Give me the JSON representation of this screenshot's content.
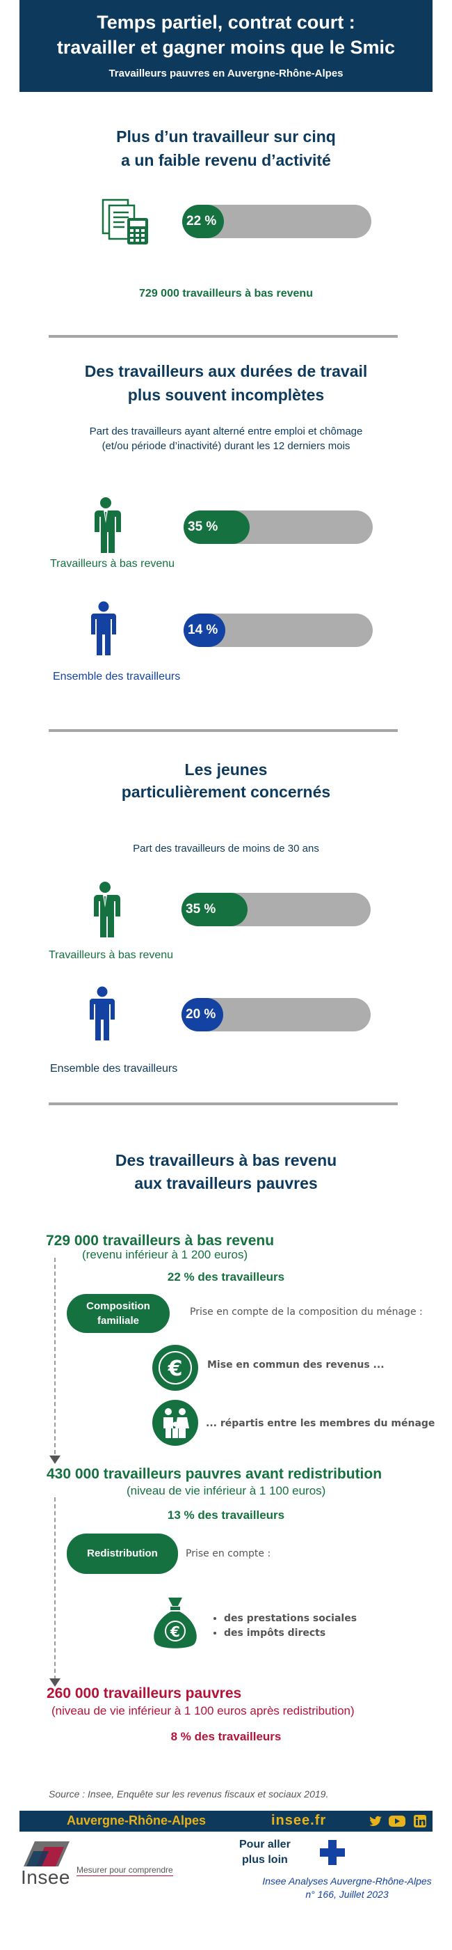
{
  "header": {
    "title_line1": "Temps partiel, contrat court :",
    "title_line2": "travailler et gagner moins que le Smic",
    "subtitle": "Travailleurs pauvres en Auvergne-Rhône-Alpes"
  },
  "section1": {
    "title_line1": "Plus d’un travailleur sur cinq",
    "title_line2": "a un faible revenu d’activité",
    "bar": {
      "label": "22 %",
      "value": 22,
      "color": "#15713f"
    },
    "caption": "729 000 travailleurs à bas revenu"
  },
  "section2": {
    "title_line1": "Des travailleurs aux durées de travail",
    "title_line2": "plus souvent incomplètes",
    "subtitle_line1": "Part des travailleurs ayant alterné entre emploi et chômage",
    "subtitle_line2": "(et/ou période d’inactivité) durant les 12 derniers mois",
    "rows": [
      {
        "label": "Travailleurs à bas revenu",
        "bar_label": "35 %",
        "value": 35,
        "color": "#15713f"
      },
      {
        "label": "Ensemble des travailleurs",
        "bar_label": "14 %",
        "value": 14,
        "color": "#1342a3"
      }
    ]
  },
  "section3": {
    "title_line1": "Les jeunes",
    "title_line2": "particulièrement concernés",
    "subtitle": "Part des travailleurs de moins de 30 ans",
    "rows": [
      {
        "label": "Travailleurs à bas revenu",
        "bar_label": "35 %",
        "value": 35,
        "color": "#15713f"
      },
      {
        "label": "Ensemble des travailleurs",
        "bar_label": "20 %",
        "value": 20,
        "color": "#1342a3"
      }
    ]
  },
  "section4": {
    "title_line1": "Des travailleurs à bas revenu",
    "title_line2": "aux travailleurs pauvres",
    "step1": {
      "headline": "729 000 travailleurs à bas revenu",
      "detail": "(revenu inférieur à 1 200 euros)",
      "share": "22 % des travailleurs"
    },
    "family": {
      "pill_line1": "Composition",
      "pill_line2": "familiale",
      "note": "Prise en compte de la composition du ménage :",
      "item1": "Mise en commun des revenus ...",
      "item2": "... répartis entre les membres du ménage"
    },
    "step2": {
      "headline": "430 000 travailleurs pauvres avant redistribution",
      "detail": "(niveau de vie inférieur à 1 100 euros)",
      "share": "13 % des travailleurs"
    },
    "redistribution": {
      "pill": "Redistribution",
      "note": "Prise en compte :",
      "items": [
        "des prestations sociales",
        "des impôts directs"
      ]
    },
    "step3": {
      "headline": "260 000 travailleurs pauvres",
      "detail": "(niveau de vie inférieur à 1 100 euros après redistribution)",
      "share": "8 % des travailleurs"
    }
  },
  "source": "Source : Insee, Enquête sur les revenus fiscaux et sociaux 2019.",
  "footer": {
    "region": "Auvergne-Rhône-Alpes",
    "site": "insee.fr",
    "logo_text": "Insee",
    "tagline": "Mesurer pour comprendre",
    "more_line1": "Pour aller",
    "more_line2": "plus loin",
    "pub_line1": "Insee Analyses Auvergne-Rhône-Alpes",
    "pub_line2": "n° 166, Juillet 2023"
  },
  "colors": {
    "navy": "#0d3a5c",
    "green": "#15713f",
    "blue": "#1342a3",
    "red": "#b5123a",
    "bar_bg": "#adadad",
    "gold": "#e8b21a"
  },
  "icons": [
    "documents-calculator-icon",
    "worker-suit-icon",
    "person-icon",
    "euro-coin-icon",
    "family-icon",
    "money-bag-icon",
    "plus-icon",
    "twitter-icon",
    "youtube-icon",
    "linkedin-icon"
  ]
}
